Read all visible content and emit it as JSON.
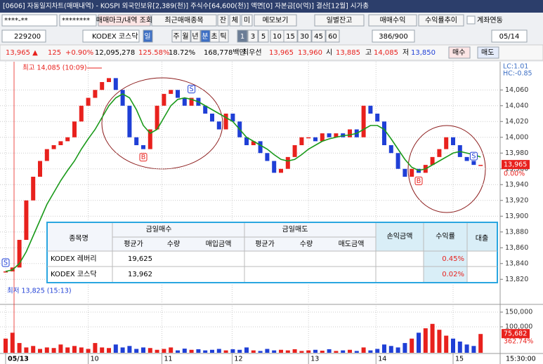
{
  "window": {
    "title": "[0606] 자동일지차트(매매내역) - KOSPI 외국인보유[2,389(천)] 주식수[64,600(천)] 액면[0] 자본금[0(억)] 결산[12월] 시가총"
  },
  "toolbar1": {
    "account": "****-**",
    "password": "********",
    "buttons": [
      "매매마크/내역 조회",
      "최근매매종목",
      "잔",
      "체",
      "미",
      "메모보기",
      "일별잔고",
      "매매수익",
      "수익률추이"
    ],
    "checkbox": "계좌연동"
  },
  "toolbar2": {
    "code": "229200",
    "name": "KODEX 코스닥",
    "periods": [
      "일",
      "주",
      "월",
      "년",
      "분",
      "초",
      "틱"
    ],
    "intervals": [
      "1",
      "3",
      "5",
      "10",
      "15",
      "30",
      "45",
      "60"
    ],
    "count": "386/900",
    "date": "05/14"
  },
  "quote": [
    "13,965 ▲",
    "125",
    "+0.90%",
    "12,095,278",
    "125.58%",
    "18.72%",
    "168,778백만",
    "최우선",
    "13,965",
    "13,960",
    "시",
    "13,885",
    "고",
    "14,085",
    "저",
    "13,850",
    "매수",
    "매도"
  ],
  "chart_data": {
    "type": "candlestick",
    "xlim": [
      0,
      70
    ],
    "xticks": [
      {
        "value": 0,
        "label": "05/13"
      },
      {
        "value": 12,
        "label": "10"
      },
      {
        "value": 22.7,
        "label": "11"
      },
      {
        "value": 32.9,
        "label": "12"
      },
      {
        "value": 44,
        "label": "13"
      },
      {
        "value": 53.8,
        "label": "14"
      },
      {
        "value": 65,
        "label": "15"
      }
    ],
    "time_label": "15:30:00",
    "ylim": [
      13790,
      14094
    ],
    "yticks": [
      {
        "value": 13820,
        "label": "13,820"
      },
      {
        "value": 13840,
        "label": "13,840"
      },
      {
        "value": 13860,
        "label": "13,860"
      },
      {
        "value": 13880,
        "label": "13,880"
      },
      {
        "value": 13900,
        "label": "13,900"
      },
      {
        "value": 13920,
        "label": "13,920"
      },
      {
        "value": 13940,
        "label": "13,940"
      },
      {
        "value": 13960,
        "label": "13,960"
      },
      {
        "value": 13980,
        "label": "13,980"
      },
      {
        "value": 14000,
        "label": "14,000"
      },
      {
        "value": 14020,
        "label": "14,020"
      },
      {
        "value": 14040,
        "label": "14,040"
      },
      {
        "value": 14060,
        "label": "14,060"
      }
    ],
    "y2lim": [
      11900,
      171400
    ],
    "y2ticks": [
      {
        "value": 100000,
        "label": "100,000"
      },
      {
        "value": 150000,
        "label": "150,000"
      }
    ],
    "grid": true,
    "up_color": "#e8211d",
    "down_color": "#1f3fd6",
    "series": [
      {
        "color": "#e8211d",
        "values": [
          13830,
          13835,
          13870,
          13920,
          13950,
          13970,
          13985,
          13990,
          13995,
          14000,
          14020,
          14040,
          14050,
          14060,
          14070,
          14075,
          14060,
          14040,
          14000,
          13990,
          13985,
          14010,
          14040,
          14055,
          14060,
          14050,
          14040,
          14050,
          14040,
          14030,
          14020,
          14010,
          14030,
          14020,
          14000,
          13990,
          13995,
          13980,
          13970,
          13955,
          13960,
          13975,
          13990,
          14000,
          14000,
          13995,
          14005,
          14000,
          14005,
          14000,
          14010,
          14000,
          14040,
          14030,
          14020,
          13990,
          13980,
          13960,
          13950,
          13960,
          13955,
          13965,
          13975,
          13985,
          14000,
          13990,
          13975,
          13970,
          13965,
          13965
        ]
      },
      {
        "color": "#1a9a1a",
        "values": [
          13830,
          13832,
          13840,
          13855,
          13875,
          13895,
          13915,
          13930,
          13945,
          13958,
          13970,
          13985,
          13998,
          14010,
          14025,
          14040,
          14050,
          14055,
          14050,
          14035,
          14015,
          14005,
          14010,
          14025,
          14040,
          14048,
          14050,
          14048,
          14045,
          14040,
          14035,
          14030,
          14025,
          14020,
          14010,
          14000,
          13995,
          13990,
          13985,
          13978,
          13972,
          13970,
          13972,
          13978,
          13985,
          13990,
          13995,
          13998,
          14000,
          14002,
          14003,
          14005,
          14010,
          14015,
          14015,
          14010,
          13998,
          13985,
          13972,
          13962,
          13958,
          13960,
          13965,
          13970,
          13975,
          13980,
          13982,
          13980,
          13978,
          13975
        ]
      },
      {
        "axis": "y2",
        "values": [
          60000,
          80000,
          45000,
          30000,
          35000,
          25000,
          30000,
          28000,
          40000,
          30000,
          35000,
          30000,
          25000,
          45000,
          30000,
          28000,
          40000,
          30000,
          35000,
          25000,
          30000,
          28000,
          22000,
          25000,
          30000,
          20000,
          26000,
          22000,
          24000,
          20000,
          22000,
          25000,
          20000,
          24000,
          22000,
          30000,
          20000,
          18000,
          25000,
          20000,
          22000,
          20000,
          24000,
          18000,
          20000,
          22000,
          19000,
          24000,
          18000,
          20000,
          22000,
          18000,
          30000,
          20000,
          25000,
          40000,
          35000,
          30000,
          45000,
          60000,
          80000,
          95000,
          110000,
          90000,
          70000,
          60000,
          50000,
          40000,
          35000,
          75682
        ]
      }
    ],
    "trades": [
      {
        "label": "S",
        "index": 0
      },
      {
        "label": "B",
        "index": 20
      },
      {
        "label": "S",
        "index": 27
      },
      {
        "label": "B",
        "index": 60
      },
      {
        "label": "S",
        "index": 68
      }
    ],
    "high_label": "최고 14,085 (10:09)",
    "low_label": "최저 13,825 (15:13)",
    "lc": "LC:1.01",
    "hc": "HC:-0.85",
    "last_price": {
      "value": 13965,
      "label": "13,965"
    },
    "last_change": "0.00%",
    "last_volume": {
      "value": 75682,
      "label": "75,682"
    },
    "volume_ratio": "362.74%"
  },
  "table": {
    "headers": [
      "종목명",
      "금일매수",
      "금일매도",
      "손익금액",
      "수익률",
      "대출"
    ],
    "subheaders": [
      "평균가",
      "수량",
      "매입금액",
      "평균가",
      "수량",
      "매도금액"
    ],
    "rows": [
      {
        "name": "KODEX 레버리",
        "buy_avg": "19,625",
        "return": "0.45%"
      },
      {
        "name": "KODEX 코스닥",
        "buy_avg": "13,962",
        "return": "0.02%"
      }
    ]
  }
}
